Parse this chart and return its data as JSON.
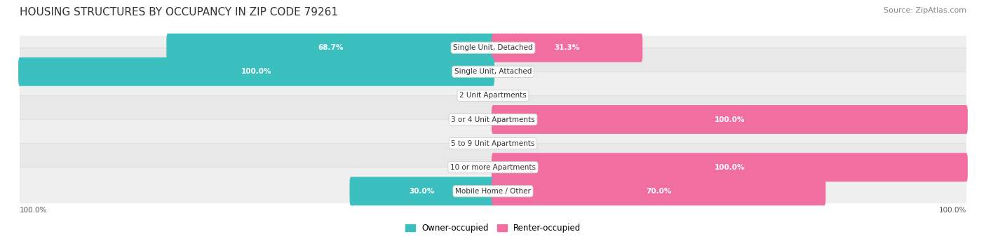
{
  "title": "HOUSING STRUCTURES BY OCCUPANCY IN ZIP CODE 79261",
  "source": "Source: ZipAtlas.com",
  "categories": [
    "Single Unit, Detached",
    "Single Unit, Attached",
    "2 Unit Apartments",
    "3 or 4 Unit Apartments",
    "5 to 9 Unit Apartments",
    "10 or more Apartments",
    "Mobile Home / Other"
  ],
  "owner_pct": [
    68.7,
    100.0,
    0.0,
    0.0,
    0.0,
    0.0,
    30.0
  ],
  "renter_pct": [
    31.3,
    0.0,
    0.0,
    100.0,
    0.0,
    100.0,
    70.0
  ],
  "owner_color": "#3BBFBF",
  "renter_color": "#F06FA0",
  "owner_color_light": "#8ED8D8",
  "renter_color_light": "#F9C0D8",
  "row_bg_even": "#EFEFEF",
  "row_bg_odd": "#E8E8E8",
  "row_border_color": "#D5D5D5",
  "label_owner": "Owner-occupied",
  "label_renter": "Renter-occupied",
  "title_fontsize": 11,
  "source_fontsize": 8,
  "bar_height": 0.6,
  "figsize": [
    14.06,
    3.41
  ],
  "dpi": 100
}
